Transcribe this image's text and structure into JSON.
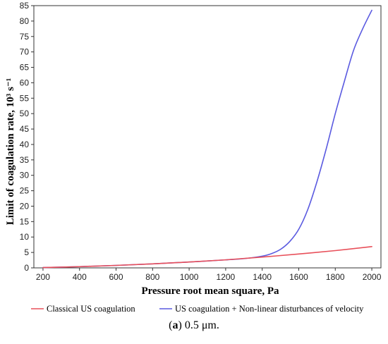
{
  "chart_data": {
    "type": "line",
    "xlabel": "Pressure root mean square, Pa",
    "ylabel": "Limit of coagulation rate, 10³ s⁻¹",
    "xlim": [
      150,
      2050
    ],
    "ylim": [
      0,
      85
    ],
    "xticks": [
      "200",
      "400",
      "600",
      "800",
      "1000",
      "1200",
      "1400",
      "1600",
      "1800",
      "2000"
    ],
    "yticks": [
      "0",
      "5",
      "10",
      "15",
      "20",
      "25",
      "30",
      "35",
      "40",
      "45",
      "50",
      "55",
      "60",
      "65",
      "70",
      "75",
      "80",
      "85"
    ],
    "grid": false,
    "legend_position": "bottom",
    "series": [
      {
        "name": "Classical US coagulation",
        "color": "#e8505a",
        "x": [
          200,
          400,
          600,
          800,
          1000,
          1200,
          1400,
          1600,
          1800,
          2000
        ],
        "y": [
          0.1,
          0.4,
          0.8,
          1.3,
          1.9,
          2.6,
          3.5,
          4.5,
          5.6,
          6.9
        ]
      },
      {
        "name": "US coagulation + Non-linear disturbances of velocity",
        "color": "#5a5ae0",
        "x": [
          200,
          400,
          600,
          800,
          1000,
          1200,
          1300,
          1400,
          1450,
          1500,
          1550,
          1600,
          1650,
          1700,
          1750,
          1800,
          1850,
          1900,
          1950,
          2000
        ],
        "y": [
          0.1,
          0.4,
          0.8,
          1.3,
          1.9,
          2.6,
          3.0,
          3.8,
          4.6,
          6.0,
          8.5,
          12.5,
          19.0,
          28.0,
          38.5,
          50.0,
          60.5,
          70.5,
          77.5,
          83.5
        ]
      }
    ]
  },
  "caption": {
    "label": "a",
    "text": "0.5 μm."
  }
}
